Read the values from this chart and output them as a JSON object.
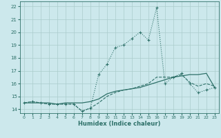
{
  "xlabel": "Humidex (Indice chaleur)",
  "bg_color": "#cce8ec",
  "grid_color": "#aacccc",
  "line_color": "#2d7068",
  "x_ticks": [
    0,
    1,
    2,
    3,
    4,
    5,
    6,
    7,
    8,
    9,
    10,
    11,
    12,
    13,
    14,
    15,
    16,
    17,
    18,
    19,
    20,
    21,
    22,
    23
  ],
  "ylim": [
    13.7,
    22.4
  ],
  "xlim": [
    -0.5,
    23.5
  ],
  "y_ticks": [
    14,
    15,
    16,
    17,
    18,
    19,
    20,
    21,
    22
  ],
  "curve_peak_x": [
    0,
    1,
    2,
    3,
    4,
    5,
    6,
    7,
    8,
    9,
    10,
    11,
    12,
    13,
    14,
    15,
    16,
    17,
    18,
    19,
    20,
    21,
    22,
    23
  ],
  "curve_peak_y": [
    14.5,
    14.6,
    14.5,
    14.4,
    14.4,
    14.4,
    14.4,
    13.85,
    14.1,
    16.7,
    17.5,
    18.8,
    19.0,
    19.5,
    20.0,
    19.4,
    21.9,
    16.0,
    16.5,
    16.8,
    16.0,
    15.3,
    15.5,
    15.7
  ],
  "curve_solid_x": [
    0,
    1,
    2,
    3,
    4,
    5,
    6,
    7,
    8,
    9,
    10,
    11,
    12,
    13,
    14,
    15,
    16,
    17,
    18,
    19,
    20,
    21,
    22,
    23
  ],
  "curve_solid_y": [
    14.5,
    14.5,
    14.5,
    14.5,
    14.4,
    14.5,
    14.5,
    14.5,
    14.6,
    14.8,
    15.2,
    15.4,
    15.5,
    15.6,
    15.7,
    15.9,
    16.1,
    16.3,
    16.5,
    16.6,
    16.7,
    16.7,
    16.8,
    15.7
  ],
  "curve_dash_x": [
    0,
    1,
    2,
    3,
    4,
    5,
    6,
    7,
    8,
    9,
    10,
    11,
    12,
    13,
    14,
    15,
    16,
    17,
    18,
    19,
    20,
    21,
    22,
    23
  ],
  "curve_dash_y": [
    14.5,
    14.6,
    14.5,
    14.4,
    14.4,
    14.4,
    14.4,
    13.85,
    14.1,
    14.5,
    15.0,
    15.3,
    15.5,
    15.6,
    15.8,
    16.0,
    16.5,
    16.5,
    16.5,
    16.7,
    16.1,
    15.8,
    16.0,
    15.8
  ]
}
